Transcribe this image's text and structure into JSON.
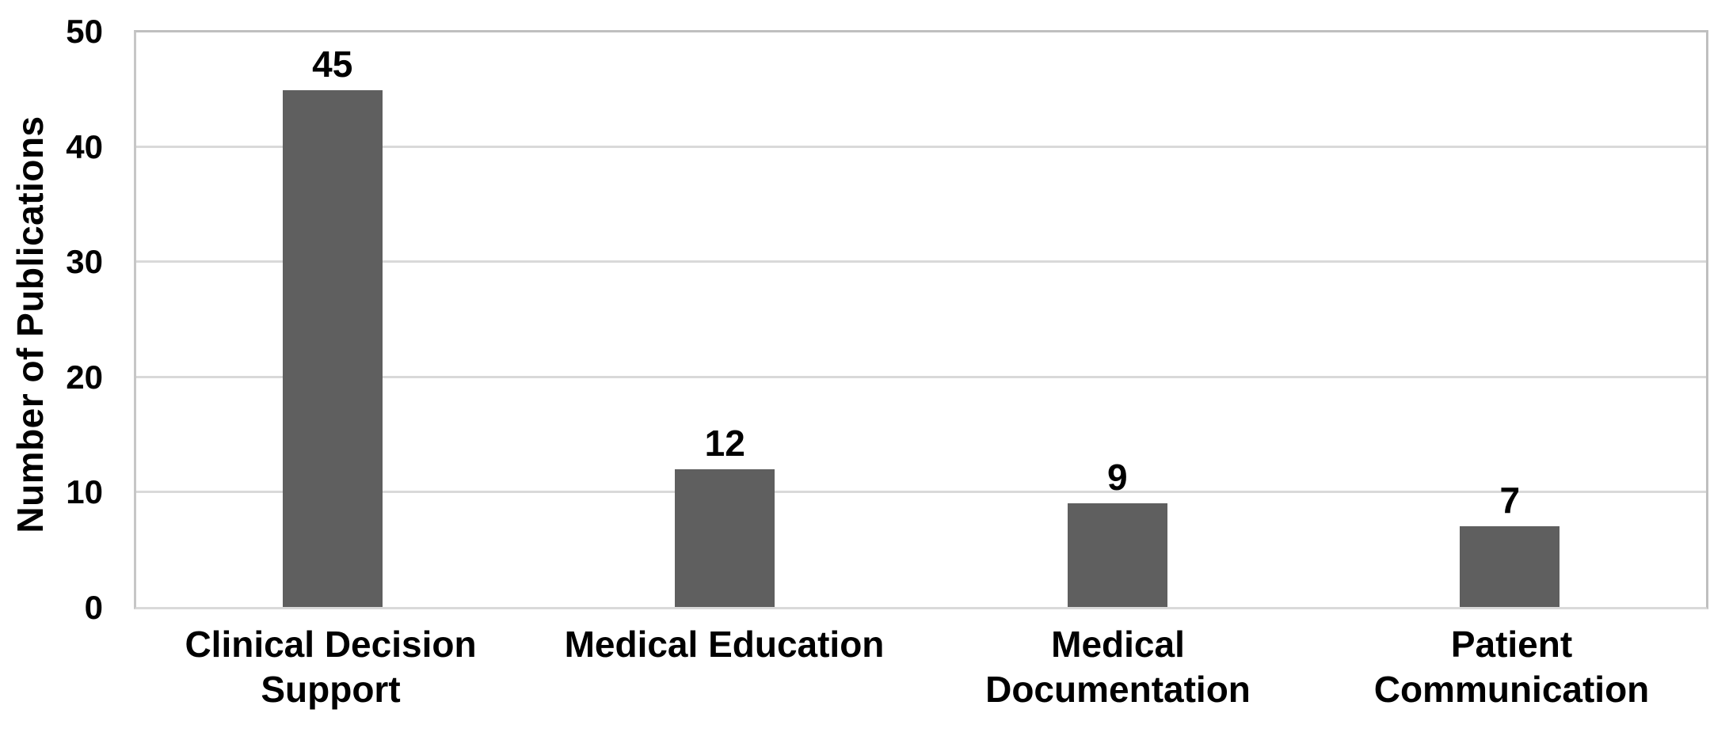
{
  "chart_data": {
    "type": "bar",
    "title": "",
    "xlabel": "",
    "ylabel": "Number of Publications",
    "categories": [
      "Clinical Decision Support",
      "Medical Education",
      "Medical Documentation",
      "Patient Communication"
    ],
    "category_labels_wrapped": [
      "Clinical Decision\nSupport",
      "Medical Education",
      "Medical\nDocumentation",
      "Patient\nCommunication"
    ],
    "values": [
      45,
      12,
      9,
      7
    ],
    "y_ticks": [
      0,
      10,
      20,
      30,
      40,
      50
    ],
    "ylim": [
      0,
      50
    ],
    "grid": true,
    "legend": false,
    "bar_color": "#5f5f5f",
    "gridline_color": "#d9d9d9",
    "axis_line_color": "#bfbfbf",
    "label_color": "#000000"
  }
}
